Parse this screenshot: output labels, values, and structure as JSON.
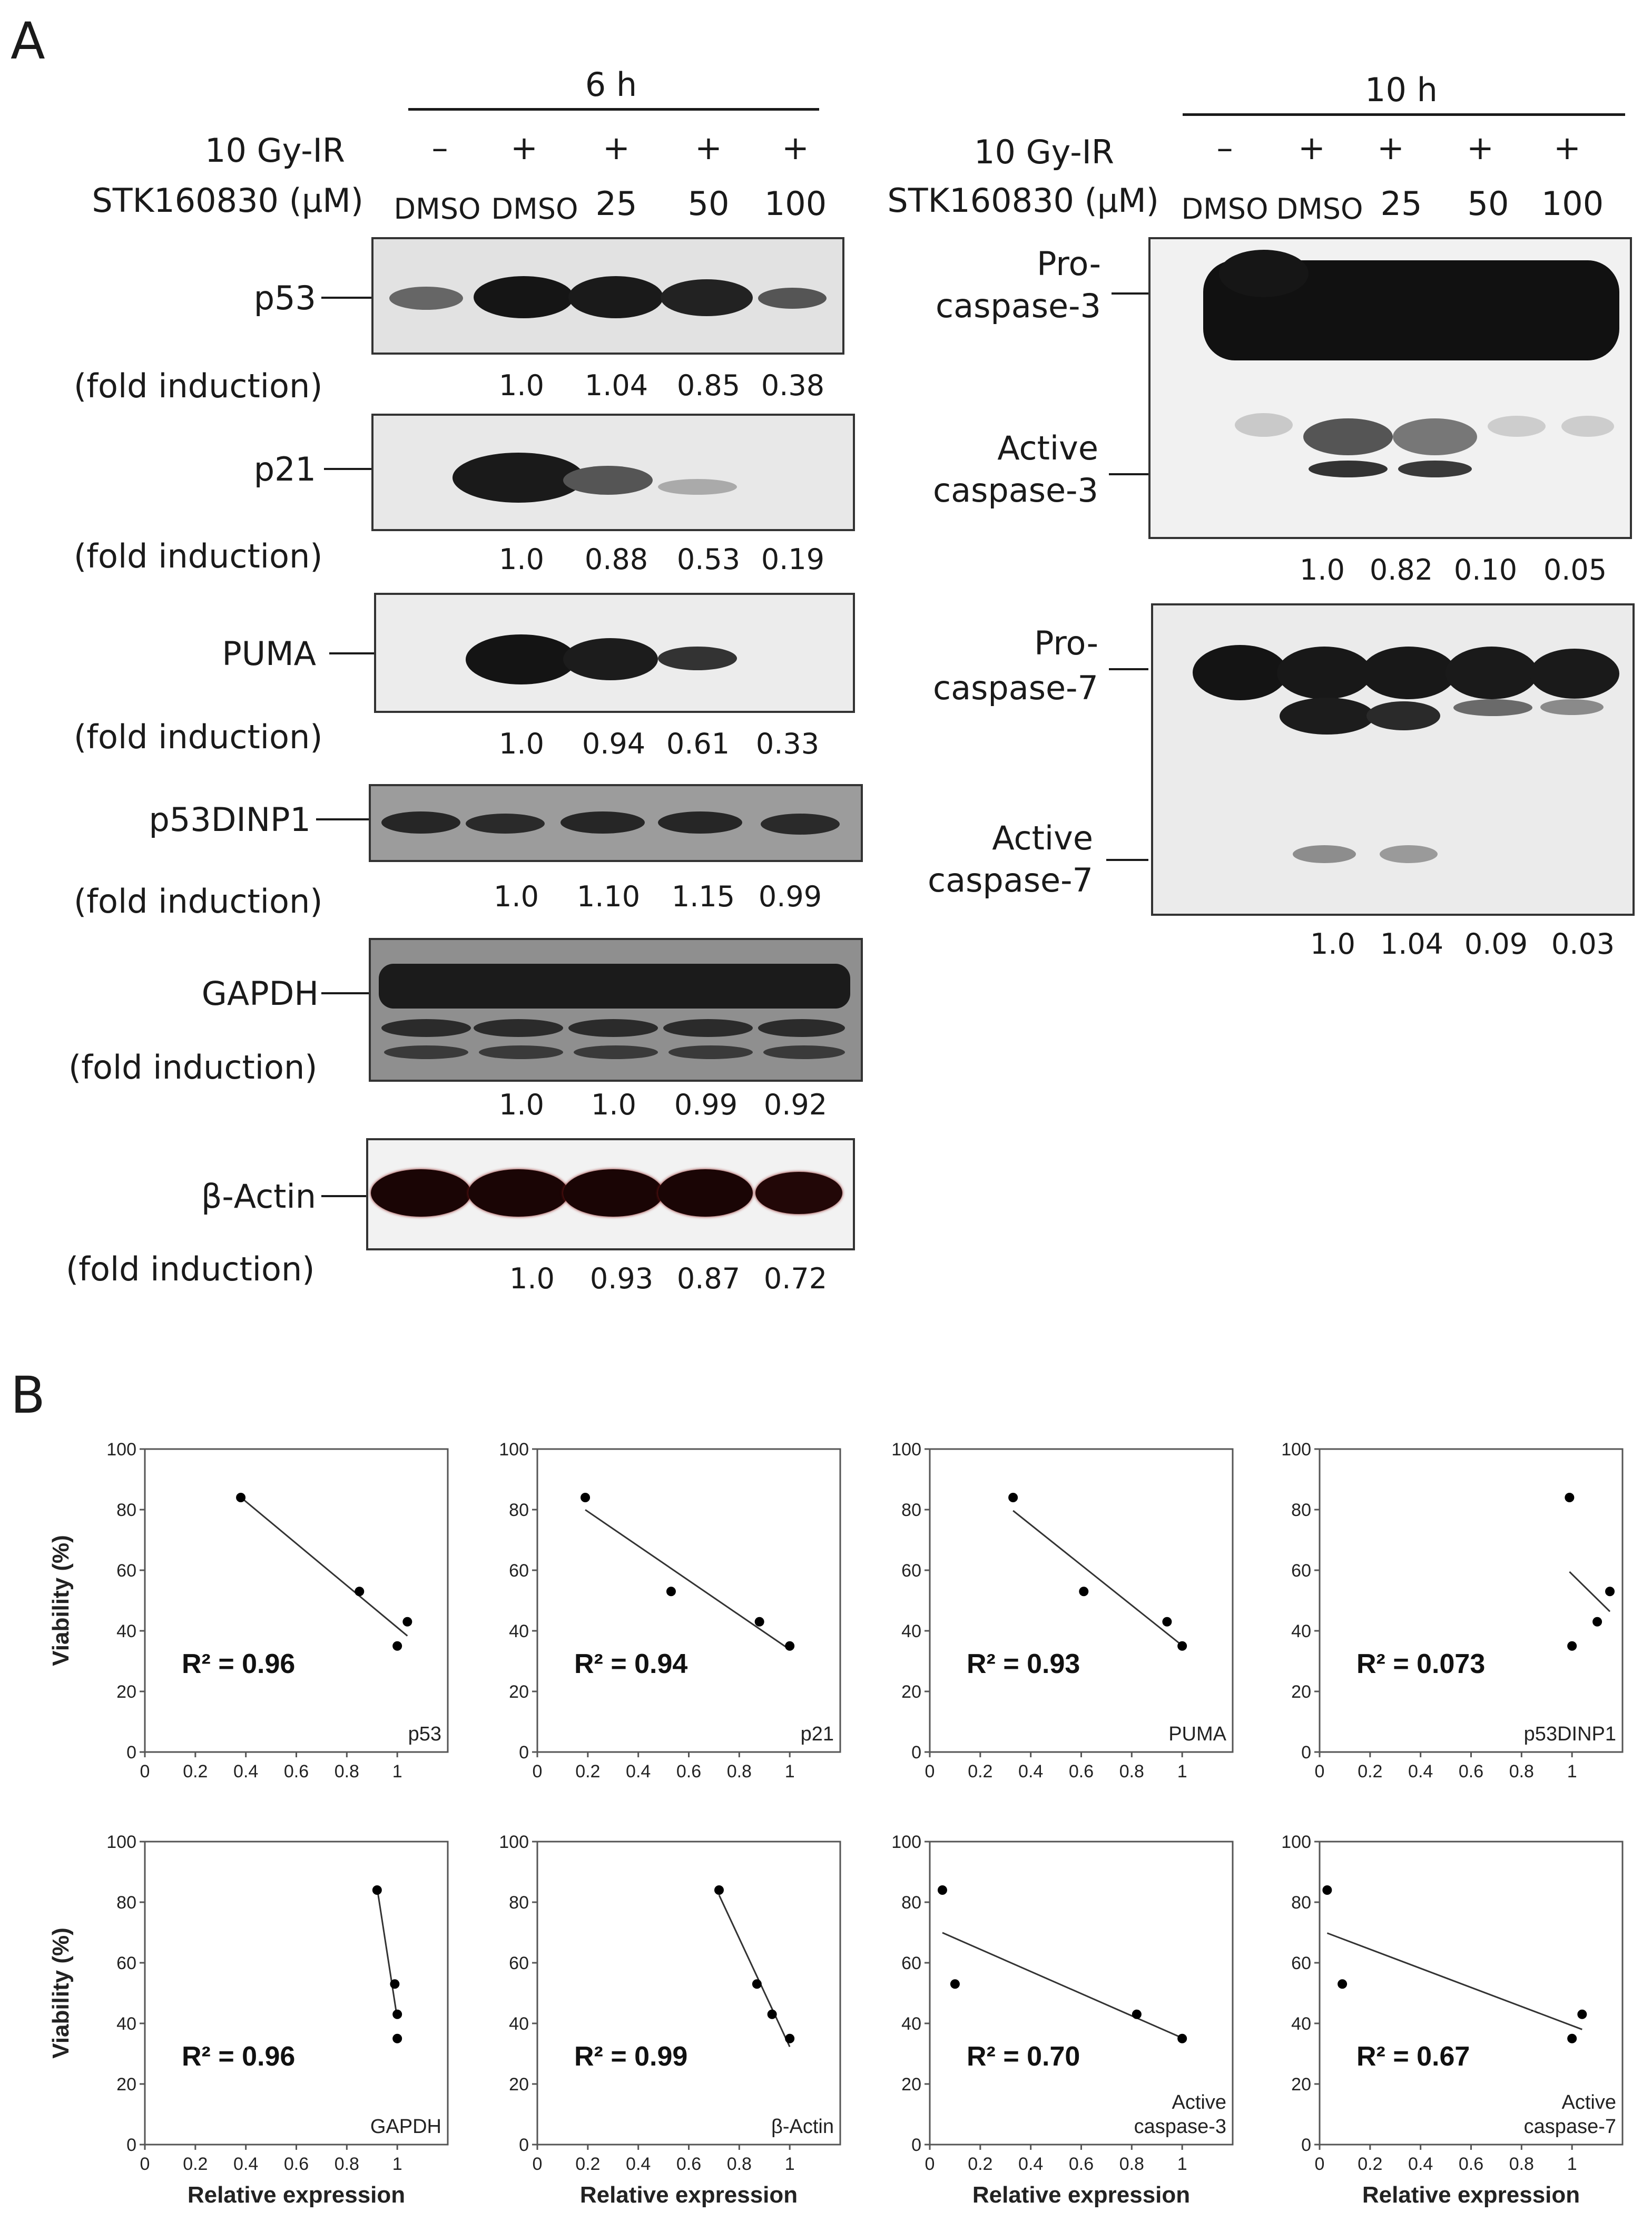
{
  "panelA": {
    "letter": "A",
    "left": {
      "time": "6 h",
      "ir_label": "10 Gy-IR",
      "drug_label": "STK160830 (μM)",
      "ir_marks": [
        "–",
        "+",
        "+",
        "+",
        "+"
      ],
      "drug_doses": [
        "DMSO",
        "DMSO",
        "25",
        "50",
        "100"
      ],
      "blots": [
        {
          "name": "p53",
          "fold_label": "(fold induction)",
          "values": [
            "1.0",
            "1.04",
            "0.85",
            "0.38"
          ]
        },
        {
          "name": "p21",
          "fold_label": "(fold induction)",
          "values": [
            "1.0",
            "0.88",
            "0.53",
            "0.19"
          ]
        },
        {
          "name": "PUMA",
          "fold_label": "(fold induction)",
          "values": [
            "1.0",
            "0.94",
            "0.61",
            "0.33"
          ]
        },
        {
          "name": "p53DINP1",
          "fold_label": "(fold induction)",
          "values": [
            "1.0",
            "1.10",
            "1.15",
            "0.99"
          ]
        },
        {
          "name": "GAPDH",
          "fold_label": "(fold induction)",
          "values": [
            "1.0",
            "1.0",
            "0.99",
            "0.92"
          ]
        },
        {
          "name": "β-Actin",
          "fold_label": "(fold induction)",
          "values": [
            "1.0",
            "0.93",
            "0.87",
            "0.72"
          ]
        }
      ]
    },
    "right": {
      "time": "10 h",
      "ir_label": "10 Gy-IR",
      "drug_label": "STK160830 (μM)",
      "ir_marks": [
        "–",
        "+",
        "+",
        "+",
        "+"
      ],
      "drug_doses": [
        "DMSO",
        "DMSO",
        "25",
        "50",
        "100"
      ],
      "casp3": {
        "pro_line1": "Pro-",
        "pro_line2": "caspase-3",
        "active_line1": "Active",
        "active_line2": "caspase-3",
        "values": [
          "1.0",
          "0.82",
          "0.10",
          "0.05"
        ]
      },
      "casp7": {
        "pro_line1": "Pro-",
        "pro_line2": "caspase-7",
        "active_line1": "Active",
        "active_line2": "caspase-7",
        "values": [
          "1.0",
          "1.04",
          "0.09",
          "0.03"
        ]
      }
    }
  },
  "panelB": {
    "letter": "B",
    "ylabel": "Viability (%)",
    "xlabel": "Relative expression"
  },
  "chart_data": [
    {
      "type": "scatter",
      "label": "p53",
      "r2": "R² = 0.96",
      "x": [
        0.38,
        0.85,
        1.0,
        1.04
      ],
      "y": [
        84,
        53,
        35,
        43
      ],
      "xlim": [
        0,
        1.2
      ],
      "ylim": [
        0,
        100
      ],
      "xticks": [
        "0",
        "0.2",
        "0.4",
        "0.6",
        "0.8",
        "1"
      ],
      "yticks": [
        "0",
        "20",
        "40",
        "60",
        "80",
        "100"
      ],
      "trendline": true
    },
    {
      "type": "scatter",
      "label": "p21",
      "r2": "R² = 0.94",
      "x": [
        0.19,
        0.53,
        0.88,
        1.0
      ],
      "y": [
        84,
        53,
        43,
        35
      ],
      "xlim": [
        0,
        1.2
      ],
      "ylim": [
        0,
        100
      ],
      "xticks": [
        "0",
        "0.2",
        "0.4",
        "0.6",
        "0.8",
        "1"
      ],
      "yticks": [
        "0",
        "20",
        "40",
        "60",
        "80",
        "100"
      ],
      "trendline": true
    },
    {
      "type": "scatter",
      "label": "PUMA",
      "r2": "R² = 0.93",
      "x": [
        0.33,
        0.61,
        0.94,
        1.0
      ],
      "y": [
        84,
        53,
        43,
        35
      ],
      "xlim": [
        0,
        1.2
      ],
      "ylim": [
        0,
        100
      ],
      "xticks": [
        "0",
        "0.2",
        "0.4",
        "0.6",
        "0.8",
        "1"
      ],
      "yticks": [
        "0",
        "20",
        "40",
        "60",
        "80",
        "100"
      ],
      "trendline": true
    },
    {
      "type": "scatter",
      "label": "p53DINP1",
      "r2": "R² = 0.073",
      "x": [
        0.99,
        1.0,
        1.1,
        1.15
      ],
      "y": [
        84,
        35,
        43,
        53
      ],
      "xlim": [
        0,
        1.2
      ],
      "ylim": [
        0,
        100
      ],
      "xticks": [
        "0",
        "0.2",
        "0.4",
        "0.6",
        "0.8",
        "1"
      ],
      "yticks": [
        "0",
        "20",
        "40",
        "60",
        "80",
        "100"
      ],
      "trendline": true
    },
    {
      "type": "scatter",
      "label": "GAPDH",
      "r2": "R² = 0.96",
      "x": [
        0.92,
        0.99,
        1.0,
        1.0
      ],
      "y": [
        84,
        53,
        43,
        35
      ],
      "xlim": [
        0,
        1.2
      ],
      "ylim": [
        0,
        100
      ],
      "xticks": [
        "0",
        "0.2",
        "0.4",
        "0.6",
        "0.8",
        "1"
      ],
      "yticks": [
        "0",
        "20",
        "40",
        "60",
        "80",
        "100"
      ],
      "trendline": true
    },
    {
      "type": "scatter",
      "label": "β-Actin",
      "r2": "R² = 0.99",
      "x": [
        0.72,
        0.87,
        0.93,
        1.0
      ],
      "y": [
        84,
        53,
        43,
        35
      ],
      "xlim": [
        0,
        1.2
      ],
      "ylim": [
        0,
        100
      ],
      "xticks": [
        "0",
        "0.2",
        "0.4",
        "0.6",
        "0.8",
        "1"
      ],
      "yticks": [
        "0",
        "20",
        "40",
        "60",
        "80",
        "100"
      ],
      "trendline": true
    },
    {
      "type": "scatter",
      "label": "Active caspase-3",
      "label_line1": "Active",
      "label_line2": "caspase-3",
      "r2": "R² = 0.70",
      "x": [
        0.05,
        0.1,
        0.82,
        1.0
      ],
      "y": [
        84,
        53,
        43,
        35
      ],
      "xlim": [
        0,
        1.2
      ],
      "ylim": [
        0,
        100
      ],
      "xticks": [
        "0",
        "0.2",
        "0.4",
        "0.6",
        "0.8",
        "1"
      ],
      "yticks": [
        "0",
        "20",
        "40",
        "60",
        "80",
        "100"
      ],
      "trendline": true
    },
    {
      "type": "scatter",
      "label": "Active caspase-7",
      "label_line1": "Active",
      "label_line2": "caspase-7",
      "r2": "R² = 0.67",
      "x": [
        0.03,
        0.09,
        1.0,
        1.04
      ],
      "y": [
        84,
        53,
        35,
        43
      ],
      "xlim": [
        0,
        1.2
      ],
      "ylim": [
        0,
        100
      ],
      "xticks": [
        "0",
        "0.2",
        "0.4",
        "0.6",
        "0.8",
        "1"
      ],
      "yticks": [
        "0",
        "20",
        "40",
        "60",
        "80",
        "100"
      ],
      "trendline": true
    }
  ]
}
